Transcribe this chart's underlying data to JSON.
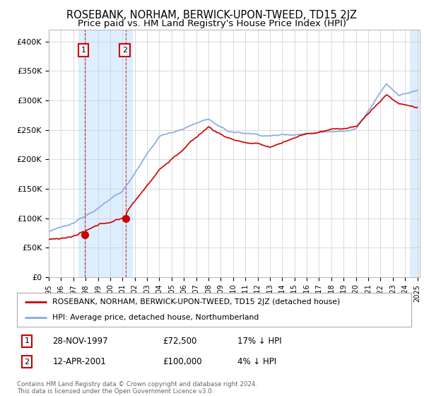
{
  "title": "ROSEBANK, NORHAM, BERWICK-UPON-TWEED, TD15 2JZ",
  "subtitle": "Price paid vs. HM Land Registry's House Price Index (HPI)",
  "ylim": [
    0,
    420000
  ],
  "yticks": [
    0,
    50000,
    100000,
    150000,
    200000,
    250000,
    300000,
    350000,
    400000
  ],
  "ytick_labels": [
    "£0",
    "£50K",
    "£100K",
    "£150K",
    "£200K",
    "£250K",
    "£300K",
    "£350K",
    "£400K"
  ],
  "hpi_color": "#88aadd",
  "price_color": "#cc0000",
  "dot_color": "#cc0000",
  "shade_color": "#ddeeff",
  "grid_color": "#cccccc",
  "transaction1_year": 1997.92,
  "transaction1_value": 72500,
  "transaction1_date_str": "28-NOV-1997",
  "transaction1_price_str": "£72,500",
  "transaction1_hpi_str": "17% ↓ HPI",
  "transaction2_year": 2001.28,
  "transaction2_value": 100000,
  "transaction2_date_str": "12-APR-2001",
  "transaction2_price_str": "£100,000",
  "transaction2_hpi_str": "4% ↓ HPI",
  "legend_label1": "ROSEBANK, NORHAM, BERWICK-UPON-TWEED, TD15 2JZ (detached house)",
  "legend_label2": "HPI: Average price, detached house, Northumberland",
  "footer_text": "Contains HM Land Registry data © Crown copyright and database right 2024.\nThis data is licensed under the Open Government Licence v3.0.",
  "bg_color": "#ffffff",
  "title_fontsize": 10.5,
  "subtitle_fontsize": 9.5
}
